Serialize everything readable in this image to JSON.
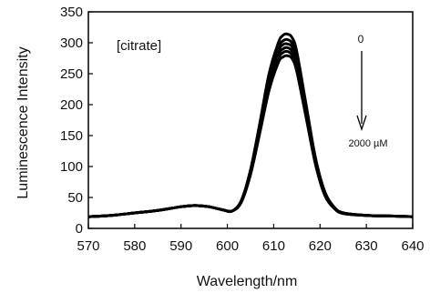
{
  "chart_data": {
    "type": "line",
    "xlabel": "Wavelength/nm",
    "ylabel": "Luminescence Intensity",
    "xlim": [
      570,
      640
    ],
    "ylim": [
      0,
      350
    ],
    "x_ticks": [
      570,
      580,
      590,
      600,
      610,
      620,
      630,
      640
    ],
    "y_ticks": [
      0,
      50,
      100,
      150,
      200,
      250,
      300,
      350
    ],
    "grid": false,
    "legend": "none",
    "annotations": {
      "label": "[citrate]",
      "arrow_start": "0",
      "arrow_end": "2000 µM"
    },
    "x": [
      570,
      575,
      580,
      585,
      590,
      593,
      596,
      599,
      601,
      603,
      605,
      607,
      609,
      611,
      612,
      613,
      614,
      615,
      617,
      619,
      621,
      623,
      625,
      630,
      635,
      640
    ],
    "series": [
      {
        "values": [
          19,
          21,
          25,
          29,
          35,
          37,
          35,
          30,
          28,
          45,
          95,
          170,
          250,
          300,
          312,
          314,
          308,
          285,
          200,
          115,
          60,
          35,
          25,
          21,
          20,
          19
        ]
      },
      {
        "values": [
          19,
          21,
          25,
          29,
          35,
          37,
          35,
          30,
          28,
          44,
          93,
          166,
          243,
          292,
          303,
          305,
          299,
          277,
          195,
          112,
          58,
          34,
          25,
          21,
          20,
          19
        ]
      },
      {
        "values": [
          19,
          21,
          25,
          29,
          35,
          37,
          35,
          30,
          28,
          44,
          92,
          163,
          238,
          286,
          297,
          298,
          293,
          271,
          191,
          110,
          57,
          34,
          25,
          21,
          20,
          19
        ]
      },
      {
        "values": [
          19,
          21,
          25,
          29,
          35,
          37,
          35,
          30,
          28,
          43,
          90,
          160,
          233,
          280,
          290,
          292,
          286,
          265,
          187,
          108,
          56,
          33,
          25,
          21,
          20,
          19
        ]
      },
      {
        "values": [
          19,
          21,
          25,
          29,
          35,
          37,
          35,
          30,
          28,
          43,
          89,
          157,
          228,
          274,
          284,
          286,
          280,
          259,
          183,
          106,
          55,
          33,
          24,
          21,
          20,
          19
        ]
      },
      {
        "values": [
          19,
          21,
          25,
          29,
          35,
          37,
          35,
          30,
          28,
          42,
          87,
          154,
          223,
          268,
          277,
          279,
          274,
          253,
          179,
          104,
          54,
          33,
          24,
          21,
          20,
          19
        ]
      }
    ]
  }
}
